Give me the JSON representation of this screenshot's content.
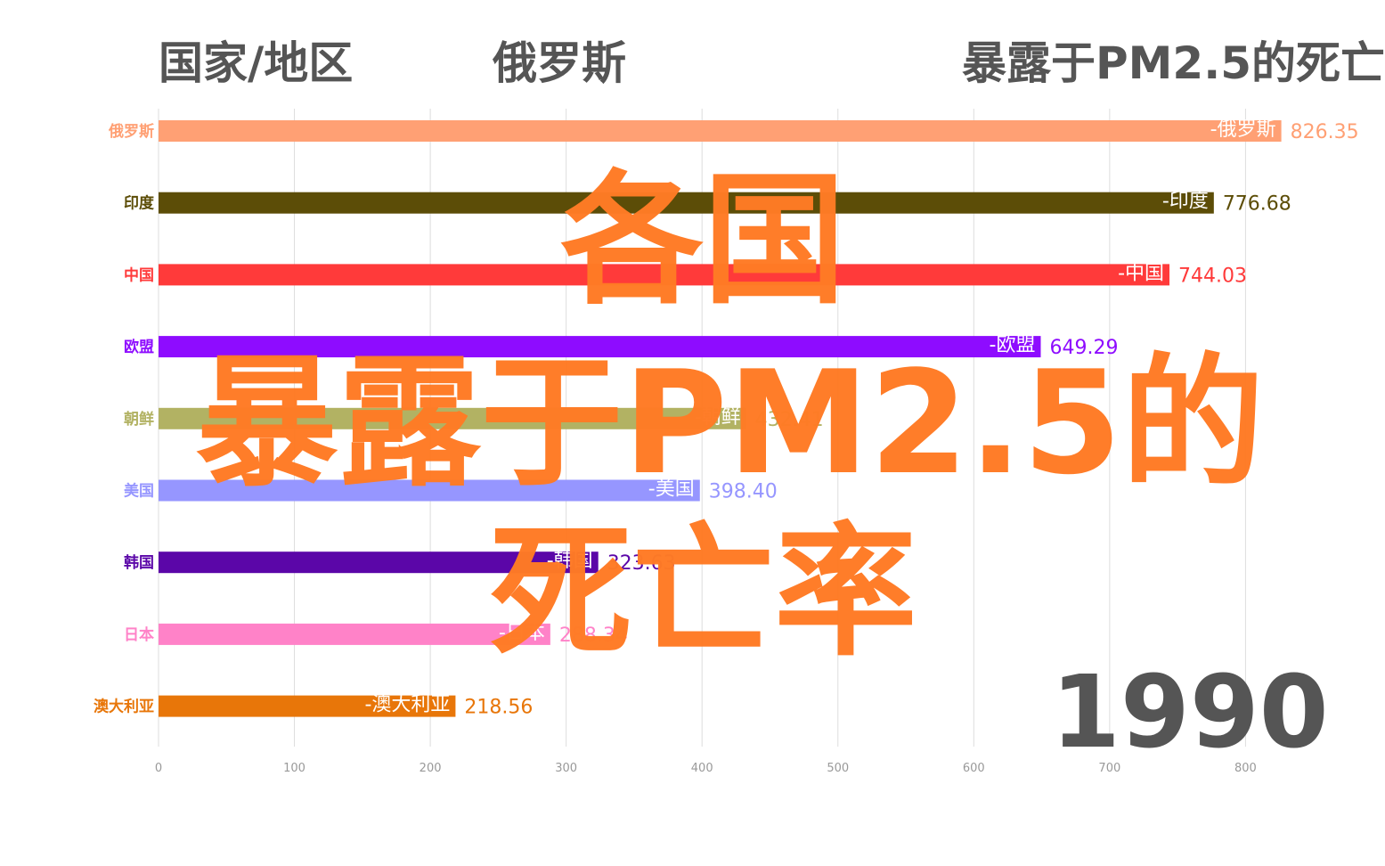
{
  "header": {
    "region_label": "国家/地区",
    "leader": "俄罗斯",
    "metric": "暴露于PM2.5的死亡"
  },
  "overlay": {
    "line1": "各国",
    "line2": "暴露于PM2.5的",
    "line3": "死亡率"
  },
  "year": "1990",
  "chart_data": {
    "type": "bar",
    "orientation": "horizontal",
    "categories": [
      "俄罗斯",
      "印度",
      "中国",
      "欧盟",
      "朝鲜",
      "美国",
      "韩国",
      "日本",
      "澳大利亚"
    ],
    "values": [
      826.35,
      776.68,
      744.03,
      649.29,
      432.41,
      398.4,
      323.63,
      288.34,
      218.56
    ],
    "bar_labels": [
      "-俄罗斯",
      "-印度",
      "-中国",
      "-欧盟",
      "-朝鲜",
      "-美国",
      "-韩国",
      "-日本",
      "-澳大利亚"
    ],
    "value_labels": [
      "826.35",
      "776.68",
      "744.03",
      "649.29",
      "432.41",
      "398.40",
      "323.63",
      "288.34",
      "218.56"
    ],
    "colors": [
      "#ffa074",
      "#5c4d07",
      "#ff3a3a",
      "#8e0cff",
      "#b2b263",
      "#9696ff",
      "#5b06a8",
      "#ff82c8",
      "#e87609"
    ],
    "xlim": [
      0,
      830
    ],
    "xticks": [
      0,
      100,
      200,
      300,
      400,
      500,
      600,
      700,
      800
    ],
    "grid": true
  }
}
